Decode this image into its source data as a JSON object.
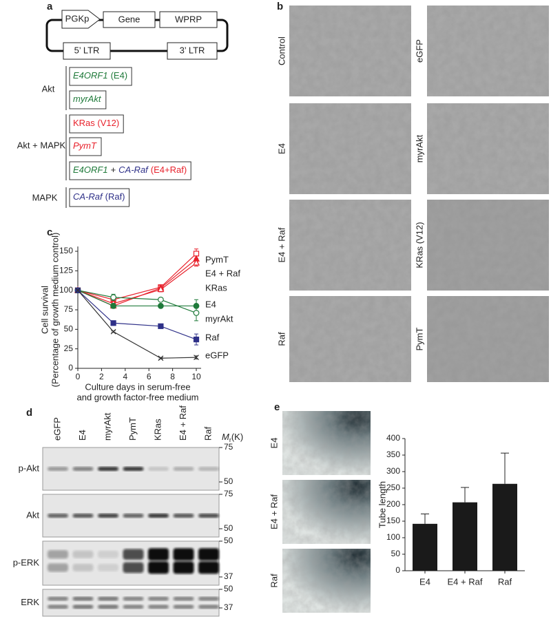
{
  "panel_labels": [
    "a",
    "b",
    "c",
    "d",
    "e"
  ],
  "construct": {
    "promoter": "PGKp",
    "gene": "Gene",
    "element": "WPRP",
    "ltr5": "5’ LTR",
    "ltr3": "3’ LTR"
  },
  "groups": [
    {
      "name": "Akt",
      "color": "#1f7a3a",
      "items": [
        [
          {
            "text": "E4ORF1",
            "italic": true,
            "color": "#1f7a3a"
          },
          {
            "text": "(E4)",
            "color": "#1f7a3a"
          }
        ],
        [
          {
            "text": "myrAkt",
            "italic": true,
            "color": "#1f7a3a"
          }
        ]
      ]
    },
    {
      "name": "Akt + MAPK",
      "color": "#e8212b",
      "items": [
        [
          {
            "text": "KRas (V12)",
            "color": "#e8212b"
          }
        ],
        [
          {
            "text": "PymT",
            "italic": true,
            "color": "#e8212b"
          }
        ],
        [
          {
            "text": "E4ORF1",
            "italic": true,
            "color": "#1f7a3a"
          },
          {
            "text": "+",
            "color": "#222222"
          },
          {
            "text": "CA-Raf",
            "italic": true,
            "color": "#2e3088"
          },
          {
            "text": "(E4+Raf)",
            "color": "#e8212b"
          }
        ]
      ]
    },
    {
      "name": "MAPK",
      "color": "#2e3088",
      "items": [
        [
          {
            "text": "CA-Raf",
            "italic": true,
            "color": "#2e3088"
          },
          {
            "text": "(Raf)",
            "color": "#2e3088"
          }
        ]
      ]
    }
  ],
  "micrographs": [
    "Control",
    "eGFP",
    "E4",
    "myrAkt",
    "E4 + Raf",
    "KRas (V12)",
    "Raf",
    "PymT"
  ],
  "blot": {
    "lanes": [
      {
        "label": "eGFP",
        "color": "#222222"
      },
      {
        "label": "E4",
        "color": "#1f7a3a"
      },
      {
        "label": "myrAkt",
        "color": "#1f7a3a"
      },
      {
        "label": "PymT",
        "color": "#e8212b"
      },
      {
        "label": "KRas",
        "color": "#e8212b"
      },
      {
        "label": "E4 + Raf",
        "color": "#e8212b"
      },
      {
        "label": "Raf",
        "color": "#2e3088"
      }
    ],
    "mass": {
      "symbol": "M",
      "subscript": "r",
      "unit": "(K)"
    },
    "rows": [
      {
        "label": "p-Akt",
        "markers": [
          75,
          50
        ]
      },
      {
        "label": "Akt",
        "markers": [
          75,
          50
        ]
      },
      {
        "label": "p-ERK",
        "markers": [
          50,
          37
        ]
      },
      {
        "label": "ERK",
        "markers": [
          50,
          37
        ]
      }
    ]
  },
  "tube_images": [
    "E4",
    "E4 + Raf",
    "Raf"
  ],
  "chart_data": [
    {
      "type": "line",
      "ylabel": [
        "Cell survival",
        "(Percentage of growth medium control)"
      ],
      "xlabel": [
        "Culture days in serum-free",
        "and growth factor-free medium"
      ],
      "x": [
        0,
        3,
        7,
        10
      ],
      "xlim": [
        0,
        10
      ],
      "xticks": [
        0,
        2,
        4,
        6,
        8,
        10
      ],
      "ylim": [
        0,
        150
      ],
      "yticks": [
        0,
        25,
        50,
        75,
        100,
        125,
        150
      ],
      "series": [
        {
          "name": "PymT",
          "color": "#e8212b",
          "marker": "open-square",
          "values": [
            100,
            88,
            104,
            147
          ],
          "errors": [
            0,
            3,
            3,
            6
          ]
        },
        {
          "name": "E4 + Raf",
          "color": "#e8212b",
          "marker": "filled-triangle",
          "values": [
            100,
            80,
            103,
            140
          ],
          "errors": [
            0,
            3,
            3,
            4
          ]
        },
        {
          "name": "KRas",
          "color": "#e8212b",
          "marker": "open-triangle",
          "values": [
            100,
            83,
            101,
            135
          ],
          "errors": [
            0,
            3,
            3,
            4
          ]
        },
        {
          "name": "E4",
          "color": "#1f7a3a",
          "marker": "filled-circle",
          "values": [
            100,
            80,
            80,
            80
          ],
          "errors": [
            0,
            3,
            2,
            8
          ]
        },
        {
          "name": "myrAkt",
          "color": "#1f7a3a",
          "marker": "open-circle",
          "values": [
            100,
            91,
            88,
            71
          ],
          "errors": [
            0,
            4,
            2,
            10
          ]
        },
        {
          "name": "Raf",
          "color": "#2e3088",
          "marker": "filled-square",
          "values": [
            100,
            58,
            54,
            37
          ],
          "errors": [
            0,
            2,
            2,
            7
          ]
        },
        {
          "name": "eGFP",
          "color": "#333333",
          "marker": "x",
          "values": [
            100,
            47,
            13,
            14
          ],
          "errors": [
            0,
            1,
            1,
            2
          ]
        }
      ]
    },
    {
      "type": "bar",
      "ylabel": "Tube length",
      "categories": [
        "E4",
        "E4 + Raf",
        "Raf"
      ],
      "category_colors": [
        "#1f7a3a",
        "#e8212b",
        "#2e3088"
      ],
      "values": [
        142,
        207,
        263
      ],
      "errors": [
        30,
        45,
        93
      ],
      "color": "#1a1a1a",
      "ylim": [
        0,
        400
      ],
      "yticks": [
        0,
        50,
        100,
        150,
        200,
        250,
        300,
        350,
        400
      ]
    }
  ]
}
